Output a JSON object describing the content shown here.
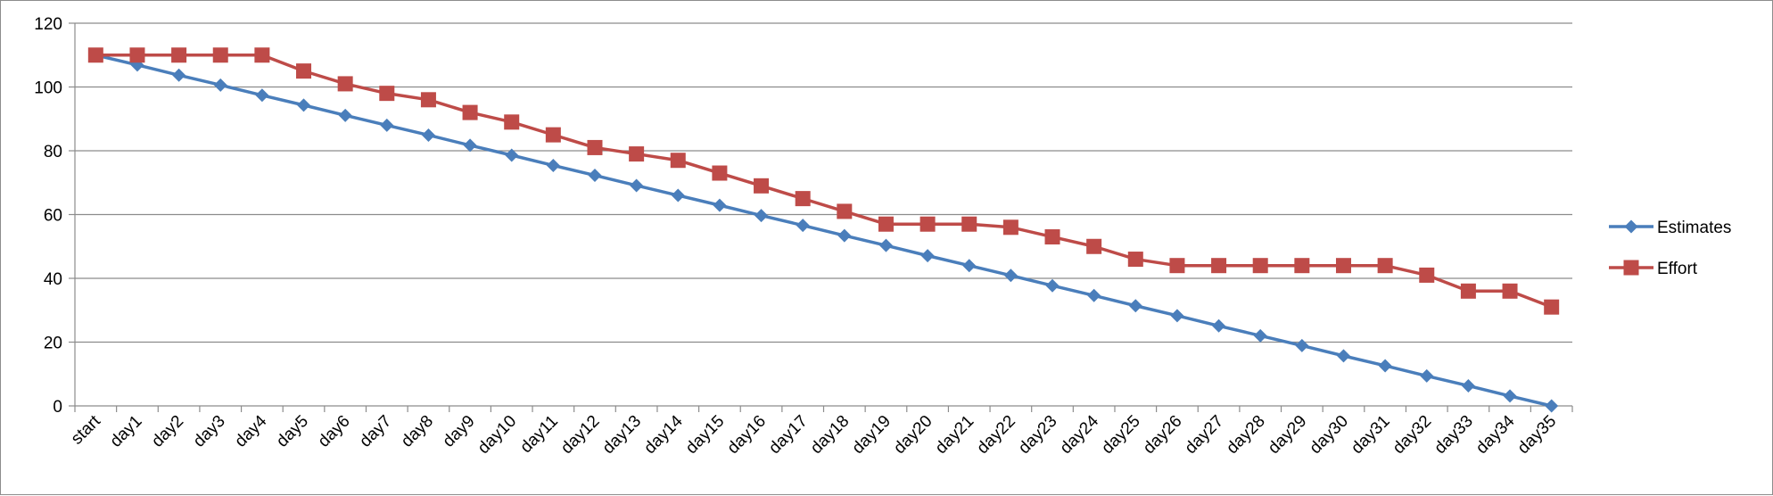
{
  "chart_data": {
    "type": "line",
    "title": "",
    "xlabel": "",
    "ylabel": "",
    "categories": [
      "start",
      "day1",
      "day2",
      "day3",
      "day4",
      "day5",
      "day6",
      "day7",
      "day8",
      "day9",
      "day10",
      "day11",
      "day12",
      "day13",
      "day14",
      "day15",
      "day16",
      "day17",
      "day18",
      "day19",
      "day20",
      "day21",
      "day22",
      "day23",
      "day24",
      "day25",
      "day26",
      "day27",
      "day28",
      "day29",
      "day30",
      "day31",
      "day32",
      "day33",
      "day34",
      "day35"
    ],
    "ylim": [
      0,
      120
    ],
    "yticks": [
      0,
      20,
      40,
      60,
      80,
      100,
      120
    ],
    "grid": true,
    "legend": "right",
    "series": [
      {
        "name": "Estimates",
        "color": "#4a7ebb",
        "marker": "diamond",
        "values": [
          110,
          106.9,
          103.7,
          100.6,
          97.4,
          94.3,
          91.1,
          88,
          84.9,
          81.7,
          78.6,
          75.4,
          72.3,
          69.1,
          66,
          62.9,
          59.7,
          56.6,
          53.4,
          50.3,
          47.1,
          44,
          40.9,
          37.7,
          34.6,
          31.4,
          28.3,
          25.1,
          22,
          18.9,
          15.7,
          12.6,
          9.4,
          6.3,
          3.1,
          0
        ]
      },
      {
        "name": "Effort",
        "color": "#be4b48",
        "marker": "square",
        "values": [
          110,
          110,
          110,
          110,
          110,
          105,
          101,
          98,
          96,
          92,
          89,
          85,
          81,
          79,
          77,
          73,
          69,
          65,
          61,
          57,
          57,
          57,
          56,
          53,
          50,
          46,
          44,
          44,
          44,
          44,
          44,
          44,
          41,
          36,
          36,
          31
        ]
      }
    ]
  }
}
